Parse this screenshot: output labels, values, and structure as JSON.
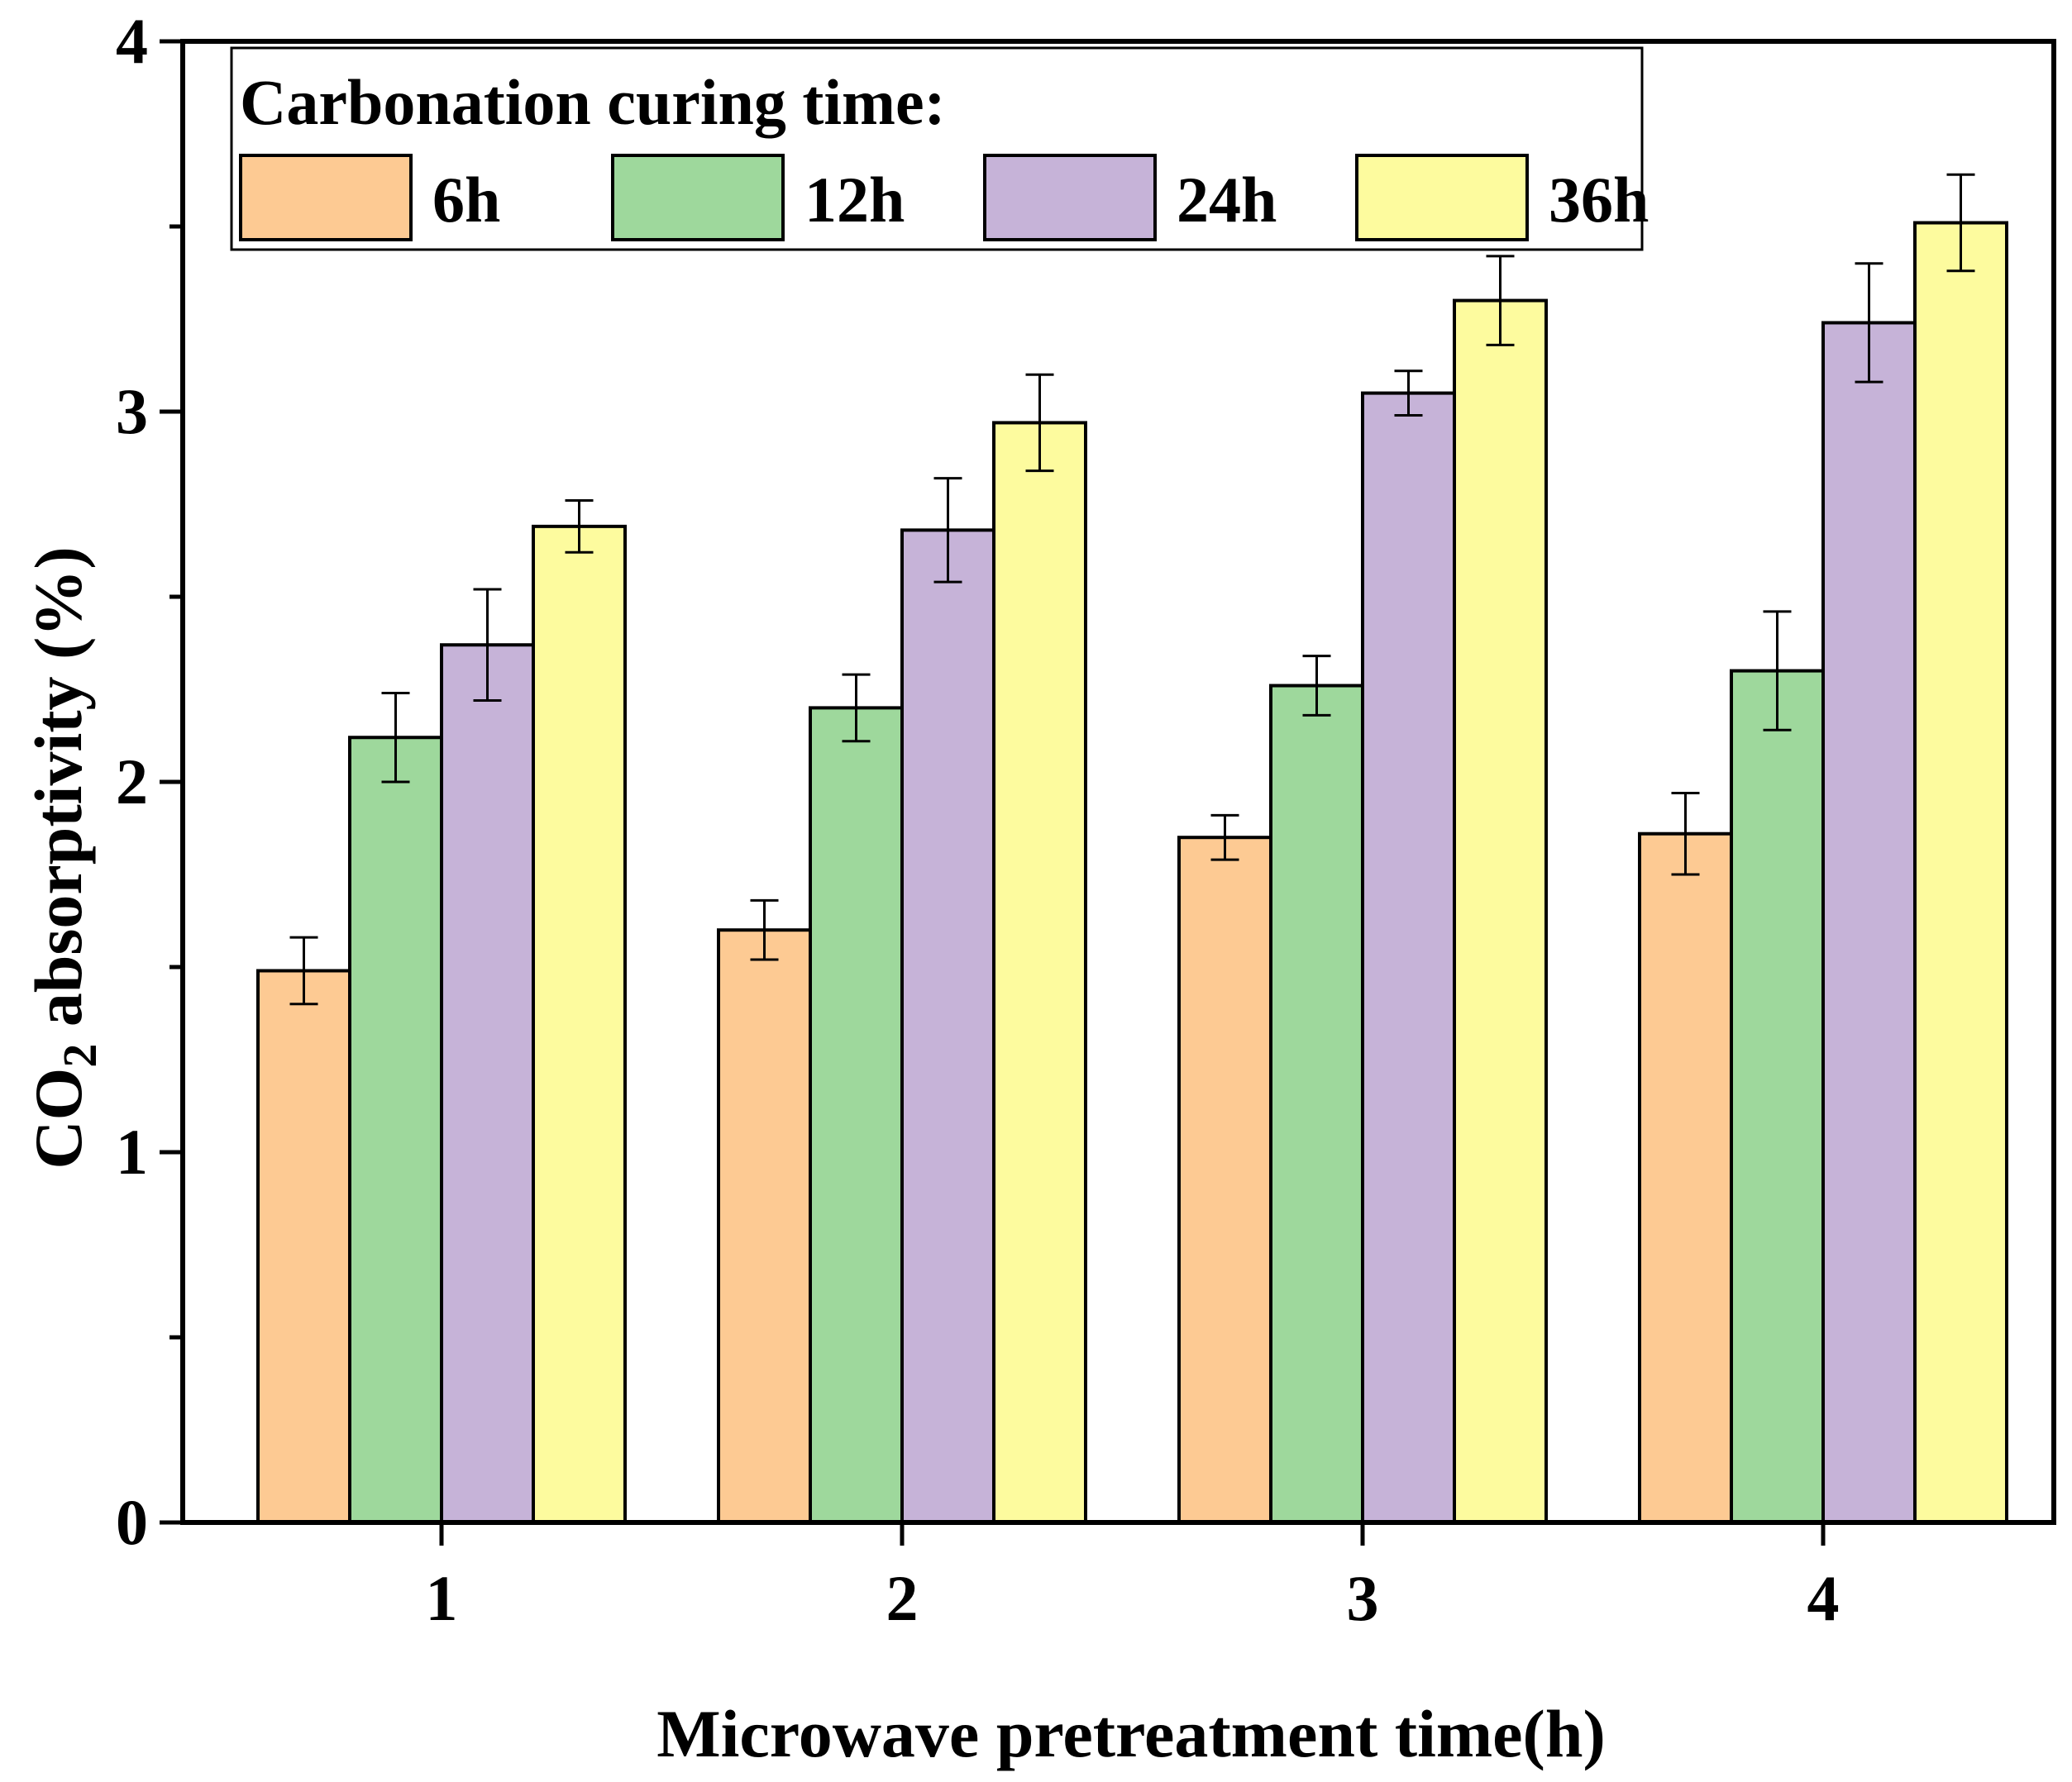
{
  "chart_data": {
    "type": "bar",
    "title": "",
    "xlabel": "Microwave pretreatment time(h)",
    "ylabel_main": "CO",
    "ylabel_sub": "2",
    "ylabel_rest": " absorptivity (%)",
    "categories": [
      "1",
      "2",
      "3",
      "4"
    ],
    "yticks": [
      "0",
      "1",
      "2",
      "3",
      "4"
    ],
    "ylim": [
      0,
      4
    ],
    "legend": {
      "title": "Carbonation curing time:",
      "position": "top-left"
    },
    "series": [
      {
        "name": "6h",
        "color": "#FDCA93",
        "values": [
          1.49,
          1.6,
          1.85,
          1.86
        ],
        "errors": [
          0.09,
          0.08,
          0.06,
          0.11
        ]
      },
      {
        "name": "12h",
        "color": "#9ED89C",
        "values": [
          2.12,
          2.2,
          2.26,
          2.3
        ],
        "errors": [
          0.12,
          0.09,
          0.08,
          0.16
        ]
      },
      {
        "name": "24h",
        "color": "#C6B3D8",
        "values": [
          2.37,
          2.68,
          3.05,
          3.24
        ],
        "errors": [
          0.15,
          0.14,
          0.06,
          0.16
        ]
      },
      {
        "name": "36h",
        "color": "#FDFB9E",
        "values": [
          2.69,
          2.97,
          3.3,
          3.51
        ],
        "errors": [
          0.07,
          0.13,
          0.12,
          0.13
        ]
      }
    ]
  }
}
